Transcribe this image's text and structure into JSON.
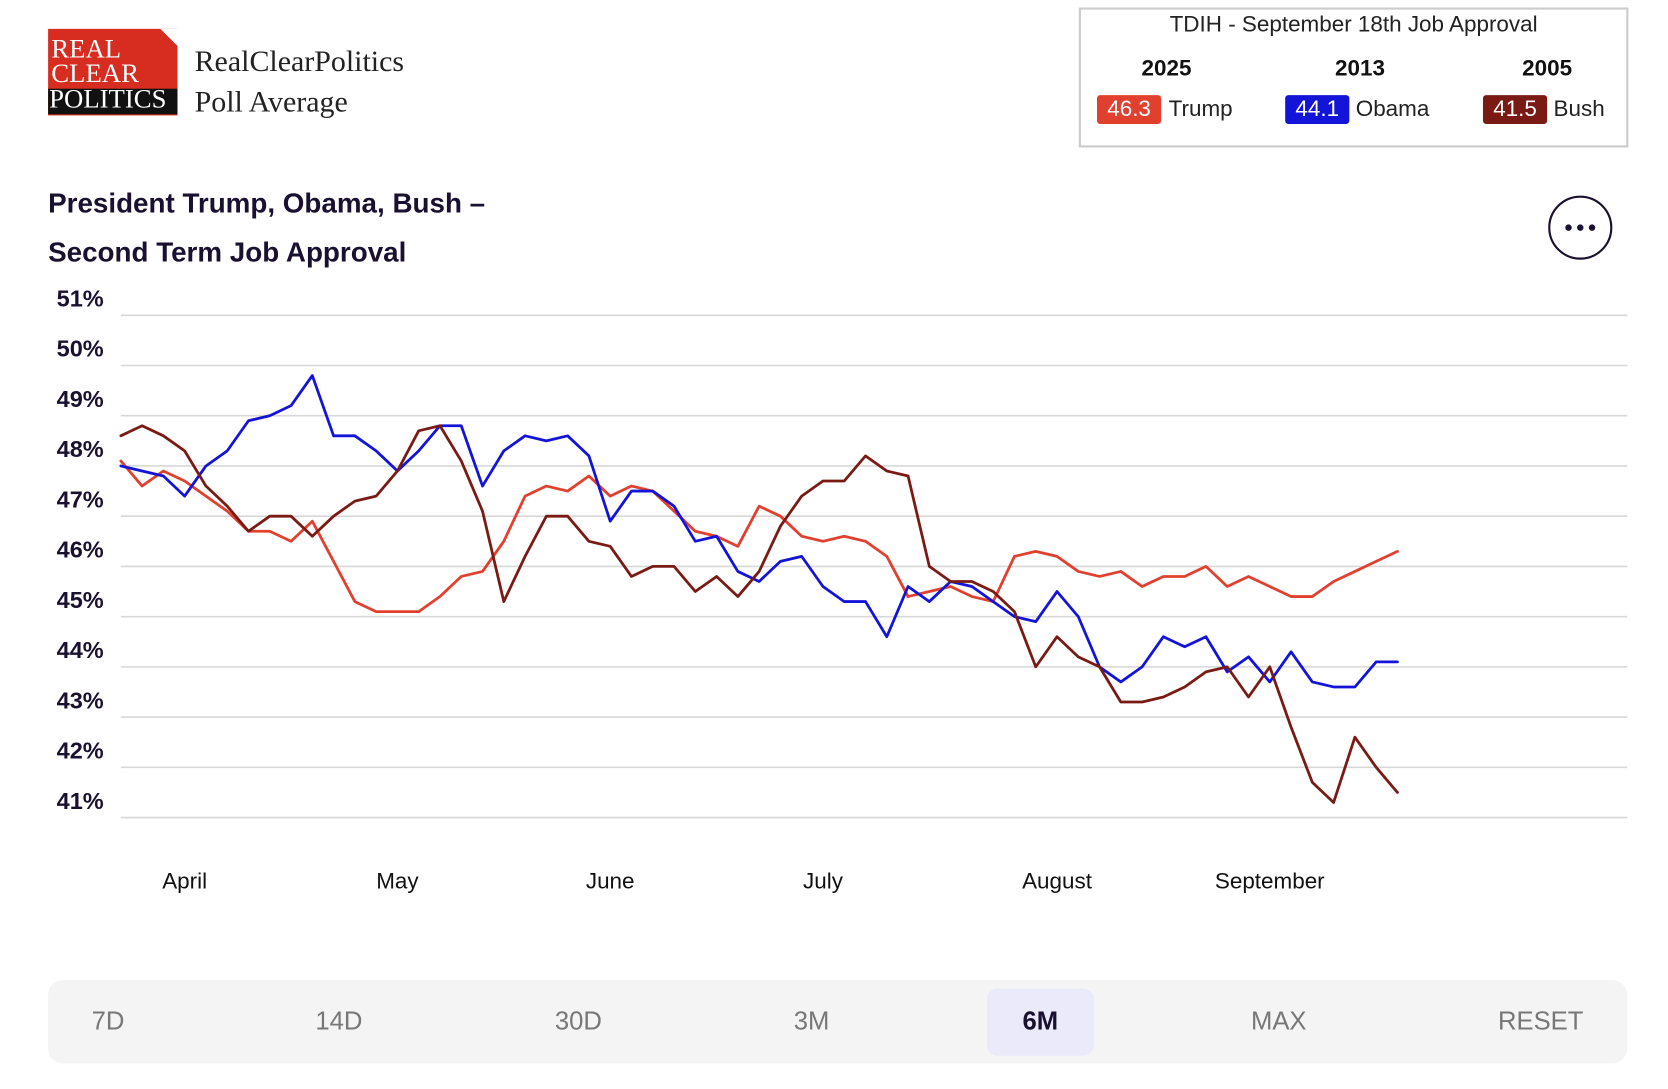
{
  "header": {
    "logo": [
      "REAL",
      "CLEAR",
      "POLITICS"
    ],
    "brand": "RealClearPolitics",
    "subtitle": "Poll Average"
  },
  "tdih": {
    "title": "TDIH - September 18th Job Approval",
    "entries": [
      {
        "year": "2025",
        "value": 46.3,
        "name": "Trump",
        "color": "#e2402f"
      },
      {
        "year": "2013",
        "value": 44.1,
        "name": "Obama",
        "color": "#1414d8"
      },
      {
        "year": "2005",
        "value": 41.5,
        "name": "Bush",
        "color": "#7a1a14"
      }
    ]
  },
  "chart_data": {
    "type": "line",
    "title": [
      "President Trump, Obama, Bush –",
      "Second Term Job Approval"
    ],
    "categories": [
      null,
      null,
      null,
      "April",
      null,
      null,
      null,
      null,
      null,
      null,
      null,
      null,
      null,
      "May",
      null,
      null,
      null,
      null,
      null,
      null,
      null,
      null,
      null,
      "June",
      null,
      null,
      null,
      null,
      null,
      null,
      null,
      null,
      null,
      "July",
      null,
      null,
      null,
      null,
      null,
      null,
      null,
      null,
      null,
      null,
      "August",
      null,
      null,
      null,
      null,
      null,
      null,
      null,
      null,
      null,
      "September",
      null,
      null,
      null,
      null,
      null,
      null
    ],
    "series": [
      {
        "name": "Trump",
        "color": "#e2402f",
        "values": [
          48.1,
          47.6,
          47.9,
          47.7,
          47.4,
          47.1,
          46.7,
          46.7,
          46.5,
          46.9,
          46.1,
          45.3,
          45.1,
          45.1,
          45.1,
          45.4,
          45.8,
          45.9,
          46.5,
          47.4,
          47.6,
          47.5,
          47.8,
          47.4,
          47.6,
          47.5,
          47.1,
          46.7,
          46.6,
          46.4,
          47.2,
          47.0,
          46.6,
          46.5,
          46.6,
          46.5,
          46.2,
          45.4,
          45.5,
          45.6,
          45.4,
          45.3,
          46.2,
          46.3,
          46.2,
          45.9,
          45.8,
          45.9,
          45.6,
          45.8,
          45.8,
          46.0,
          45.6,
          45.8,
          45.6,
          45.4,
          45.4,
          45.7,
          45.9,
          46.1,
          46.3
        ]
      },
      {
        "name": "Obama",
        "color": "#1414d8",
        "values": [
          48.0,
          47.9,
          47.8,
          47.4,
          48.0,
          48.3,
          48.9,
          49.0,
          49.2,
          49.8,
          48.6,
          48.6,
          48.3,
          47.9,
          48.3,
          48.8,
          48.8,
          47.6,
          48.3,
          48.6,
          48.5,
          48.6,
          48.2,
          46.9,
          47.5,
          47.5,
          47.2,
          46.5,
          46.6,
          45.9,
          45.7,
          46.1,
          46.2,
          45.6,
          45.3,
          45.3,
          44.6,
          45.6,
          45.3,
          45.7,
          45.6,
          45.3,
          45.0,
          44.9,
          45.5,
          45.0,
          44.0,
          43.7,
          44.0,
          44.6,
          44.4,
          44.6,
          43.9,
          44.2,
          43.7,
          44.3,
          43.7,
          43.6,
          43.6,
          44.1,
          44.1
        ]
      },
      {
        "name": "Bush",
        "color": "#7a1a14",
        "values": [
          48.6,
          48.8,
          48.6,
          48.3,
          47.6,
          47.2,
          46.7,
          47.0,
          47.0,
          46.6,
          47.0,
          47.3,
          47.4,
          47.9,
          48.7,
          48.8,
          48.1,
          47.1,
          45.3,
          46.2,
          47.0,
          47.0,
          46.5,
          46.4,
          45.8,
          46.0,
          46.0,
          45.5,
          45.8,
          45.4,
          45.9,
          46.8,
          47.4,
          47.7,
          47.7,
          48.2,
          47.9,
          47.8,
          46.0,
          45.7,
          45.7,
          45.5,
          45.1,
          44.0,
          44.6,
          44.2,
          44.0,
          43.3,
          43.3,
          43.4,
          43.6,
          43.9,
          44.0,
          43.4,
          44.0,
          42.8,
          41.7,
          41.3,
          42.6,
          42.0,
          41.5
        ]
      }
    ],
    "ylim": [
      41,
      51
    ],
    "yticks": [
      {
        "value": 41,
        "label": "41%"
      },
      {
        "value": 42,
        "label": "42%"
      },
      {
        "value": 43,
        "label": "43%"
      },
      {
        "value": 44,
        "label": "44%"
      },
      {
        "value": 45,
        "label": "45%"
      },
      {
        "value": 46,
        "label": "46%"
      },
      {
        "value": 47,
        "label": "47%"
      },
      {
        "value": 48,
        "label": "48%"
      },
      {
        "value": 49,
        "label": "49%"
      },
      {
        "value": 50,
        "label": "50%"
      },
      {
        "value": 51,
        "label": "51%"
      }
    ],
    "grid": true
  },
  "range_buttons": {
    "items": [
      "7D",
      "14D",
      "30D",
      "3M",
      "6M",
      "MAX",
      "RESET"
    ],
    "active": "6M"
  }
}
